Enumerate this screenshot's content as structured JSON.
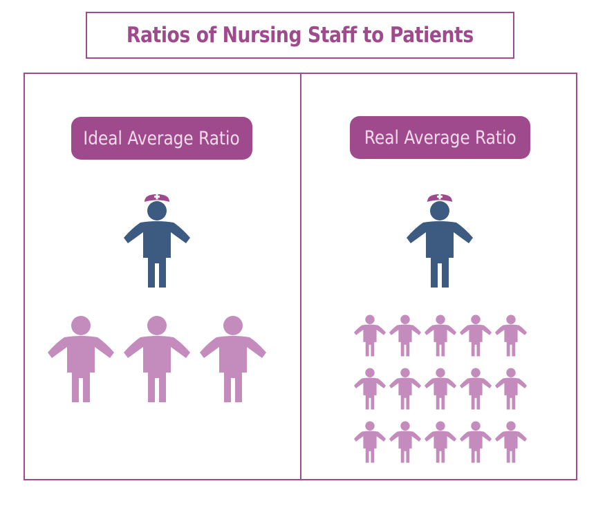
{
  "title": "Ratios of Nursing Staff to Patients",
  "panels": [
    {
      "label": "Ideal Average Ratio",
      "nurses": 1,
      "patients": 3
    },
    {
      "label": "Real Average Ratio",
      "nurses": 1,
      "patients": 15
    }
  ],
  "colors": {
    "accent": "#a04a8e",
    "nurse": "#3d5a80",
    "patient": "#c48cbc",
    "label_text": "#f3dcea"
  },
  "icons": {
    "nurse": "nurse-icon",
    "patient": "patient-icon"
  }
}
